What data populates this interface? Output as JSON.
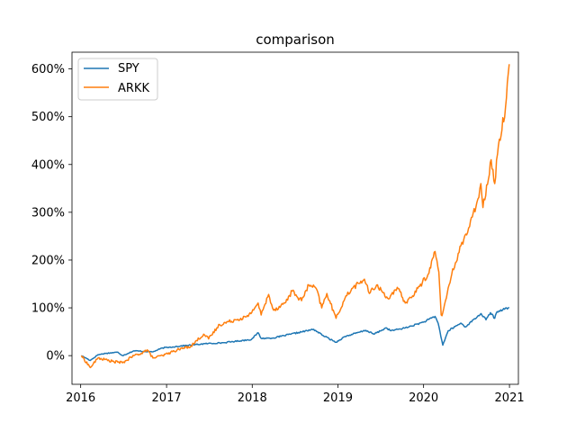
{
  "chart_data": {
    "type": "line",
    "title": "comparison",
    "xlabel": "",
    "ylabel": "",
    "x_ticks": [
      "2016",
      "2017",
      "2018",
      "2019",
      "2020",
      "2021"
    ],
    "y_ticks": [
      "0%",
      "100%",
      "200%",
      "300%",
      "400%",
      "500%",
      "600%"
    ],
    "xlim": [
      "2015-11-25",
      "2021-02-08"
    ],
    "ylim": [
      -60,
      635
    ],
    "legend_position": "top-left",
    "grid": false,
    "series": [
      {
        "name": "SPY",
        "color": "#1f77b4",
        "points": [
          [
            "2016-01-04",
            0
          ],
          [
            "2016-02-11",
            -10
          ],
          [
            "2016-03-15",
            2
          ],
          [
            "2016-04-20",
            5
          ],
          [
            "2016-06-08",
            7
          ],
          [
            "2016-06-27",
            0
          ],
          [
            "2016-08-15",
            10
          ],
          [
            "2016-11-04",
            8
          ],
          [
            "2016-12-15",
            16
          ],
          [
            "2017-03-01",
            20
          ],
          [
            "2017-06-15",
            25
          ],
          [
            "2017-09-01",
            27
          ],
          [
            "2017-12-29",
            34
          ],
          [
            "2018-01-26",
            48
          ],
          [
            "2018-02-08",
            36
          ],
          [
            "2018-04-02",
            37
          ],
          [
            "2018-06-15",
            45
          ],
          [
            "2018-09-20",
            55
          ],
          [
            "2018-10-30",
            42
          ],
          [
            "2018-12-24",
            28
          ],
          [
            "2019-01-31",
            40
          ],
          [
            "2019-04-30",
            53
          ],
          [
            "2019-06-03",
            45
          ],
          [
            "2019-07-26",
            58
          ],
          [
            "2019-08-15",
            52
          ],
          [
            "2019-10-15",
            58
          ],
          [
            "2019-12-31",
            70
          ],
          [
            "2020-02-19",
            82
          ],
          [
            "2020-03-03",
            68
          ],
          [
            "2020-03-23",
            22
          ],
          [
            "2020-04-15",
            52
          ],
          [
            "2020-06-08",
            68
          ],
          [
            "2020-06-26",
            60
          ],
          [
            "2020-09-02",
            88
          ],
          [
            "2020-09-23",
            75
          ],
          [
            "2020-10-12",
            90
          ],
          [
            "2020-10-30",
            78
          ],
          [
            "2020-11-09",
            92
          ],
          [
            "2020-12-31",
            101
          ]
        ]
      },
      {
        "name": "ARKK",
        "color": "#ff7f0e",
        "points": [
          [
            "2016-01-04",
            0
          ],
          [
            "2016-02-11",
            -25
          ],
          [
            "2016-03-15",
            -5
          ],
          [
            "2016-05-15",
            -12
          ],
          [
            "2016-06-27",
            -15
          ],
          [
            "2016-08-15",
            0
          ],
          [
            "2016-09-15",
            5
          ],
          [
            "2016-10-10",
            12
          ],
          [
            "2016-11-04",
            -5
          ],
          [
            "2016-12-15",
            0
          ],
          [
            "2017-02-15",
            12
          ],
          [
            "2017-04-15",
            20
          ],
          [
            "2017-06-08",
            45
          ],
          [
            "2017-06-29",
            35
          ],
          [
            "2017-08-15",
            65
          ],
          [
            "2017-10-20",
            75
          ],
          [
            "2017-12-15",
            82
          ],
          [
            "2018-01-26",
            110
          ],
          [
            "2018-02-08",
            85
          ],
          [
            "2018-03-12",
            128
          ],
          [
            "2018-04-02",
            95
          ],
          [
            "2018-05-20",
            110
          ],
          [
            "2018-06-20",
            135
          ],
          [
            "2018-07-30",
            115
          ],
          [
            "2018-08-30",
            148
          ],
          [
            "2018-10-01",
            140
          ],
          [
            "2018-10-24",
            100
          ],
          [
            "2018-11-15",
            130
          ],
          [
            "2018-12-24",
            78
          ],
          [
            "2019-01-31",
            120
          ],
          [
            "2019-03-01",
            140
          ],
          [
            "2019-04-24",
            160
          ],
          [
            "2019-05-15",
            130
          ],
          [
            "2019-06-15",
            148
          ],
          [
            "2019-08-01",
            120
          ],
          [
            "2019-09-15",
            140
          ],
          [
            "2019-10-15",
            110
          ],
          [
            "2019-11-15",
            125
          ],
          [
            "2019-12-15",
            145
          ],
          [
            "2020-01-20",
            170
          ],
          [
            "2020-02-19",
            218
          ],
          [
            "2020-03-06",
            175
          ],
          [
            "2020-03-16",
            85
          ],
          [
            "2020-03-23",
            90
          ],
          [
            "2020-04-30",
            170
          ],
          [
            "2020-06-08",
            230
          ],
          [
            "2020-07-15",
            270
          ],
          [
            "2020-08-15",
            320
          ],
          [
            "2020-09-01",
            360
          ],
          [
            "2020-09-10",
            310
          ],
          [
            "2020-10-15",
            410
          ],
          [
            "2020-10-30",
            360
          ],
          [
            "2020-11-15",
            440
          ],
          [
            "2020-12-15",
            520
          ],
          [
            "2020-12-31",
            610
          ]
        ]
      }
    ]
  }
}
